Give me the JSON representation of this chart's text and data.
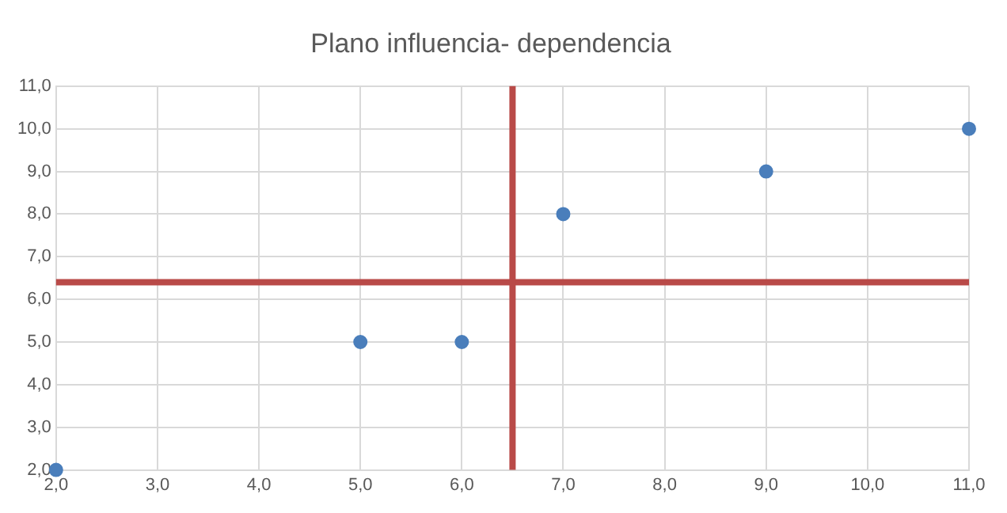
{
  "chart_data": {
    "type": "scatter",
    "title": "Plano influencia- dependencia",
    "x": [
      2,
      5,
      6,
      7,
      9,
      11
    ],
    "series": [
      {
        "color": "#4a7ebb",
        "values": [
          2,
          5,
          5,
          8,
          9,
          10
        ]
      }
    ],
    "xlim": [
      2,
      11
    ],
    "xticks": [
      {
        "value": 2,
        "label": "2,0"
      },
      {
        "value": 3,
        "label": "3,0"
      },
      {
        "value": 4,
        "label": "4,0"
      },
      {
        "value": 5,
        "label": "5,0"
      },
      {
        "value": 6,
        "label": "6,0"
      },
      {
        "value": 7,
        "label": "7,0"
      },
      {
        "value": 8,
        "label": "8,0"
      },
      {
        "value": 9,
        "label": "9,0"
      },
      {
        "value": 10,
        "label": "10,0"
      },
      {
        "value": 11,
        "label": "11,0"
      }
    ],
    "ylim": [
      2,
      11
    ],
    "yticks": [
      {
        "value": 2,
        "label": "2,0"
      },
      {
        "value": 3,
        "label": "3,0"
      },
      {
        "value": 4,
        "label": "4,0"
      },
      {
        "value": 5,
        "label": "5,0"
      },
      {
        "value": 6,
        "label": "6,0"
      },
      {
        "value": 7,
        "label": "7,0"
      },
      {
        "value": 8,
        "label": "8,0"
      },
      {
        "value": 9,
        "label": "9,0"
      },
      {
        "value": 10,
        "label": "10,0"
      },
      {
        "value": 11,
        "label": "11,0"
      }
    ],
    "ref_lines": [
      {
        "axis": "y",
        "value": 6.4,
        "color": "#b94a48"
      },
      {
        "axis": "x",
        "value": 6.5,
        "color": "#b94a48"
      }
    ],
    "grid": true,
    "legend": false,
    "marker": "circle"
  }
}
